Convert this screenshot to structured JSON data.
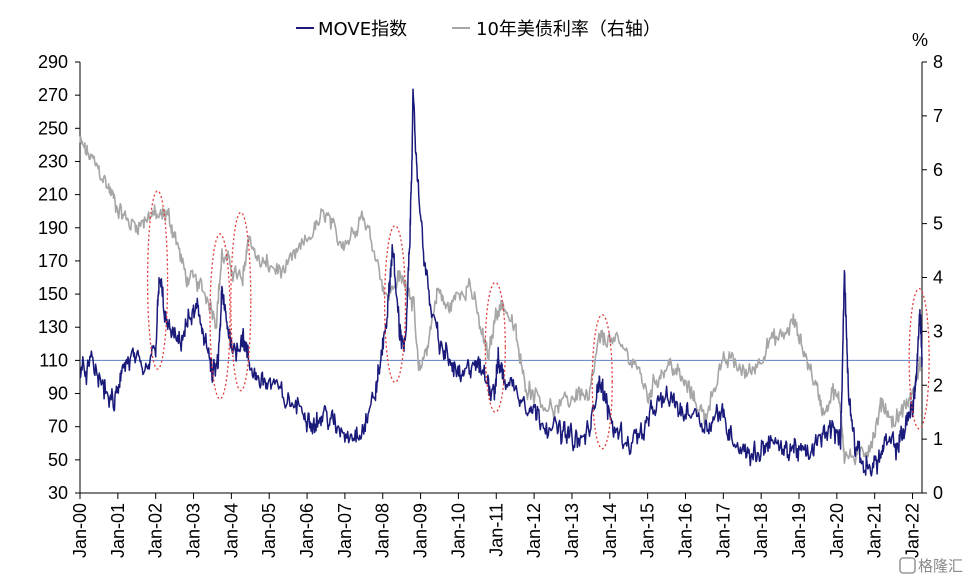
{
  "chart_data": {
    "type": "line",
    "legend": {
      "placement": "top-center",
      "items": [
        {
          "label": "MOVE指数",
          "color": "#1a1a7a"
        },
        {
          "label": "10年美债利率（右轴）",
          "color": "#a6a6a6"
        }
      ]
    },
    "left_axis": {
      "min": 30,
      "max": 290,
      "ticks": [
        "290",
        "270",
        "250",
        "230",
        "210",
        "190",
        "170",
        "150",
        "130",
        "110",
        "90",
        "70",
        "50",
        "30"
      ]
    },
    "right_axis": {
      "min": 0,
      "max": 8,
      "unit": "%",
      "ticks": [
        "8",
        "7",
        "6",
        "5",
        "4",
        "3",
        "2",
        "1",
        "0"
      ]
    },
    "x_axis": {
      "start": 2000.0,
      "end": 2022.25,
      "ticks": [
        "Jan-00",
        "Jan-01",
        "Jan-02",
        "Jan-03",
        "Jan-04",
        "Jan-05",
        "Jan-06",
        "Jan-07",
        "Jan-08",
        "Jan-09",
        "Jan-10",
        "Jan-11",
        "Jan-12",
        "Jan-13",
        "Jan-14",
        "Jan-15",
        "Jan-16",
        "Jan-17",
        "Jan-18",
        "Jan-19",
        "Jan-20",
        "Jan-21",
        "Jan-22"
      ]
    },
    "reference_line": {
      "axis": "left",
      "value": 110,
      "color": "#5b7fc4"
    },
    "grid": false,
    "series": [
      {
        "name": "MOVE指数",
        "axis": "left",
        "color": "#1a1a7a",
        "points": [
          [
            2000.0,
            100
          ],
          [
            2000.3,
            108
          ],
          [
            2000.6,
            95
          ],
          [
            2000.9,
            82
          ],
          [
            2001.1,
            105
          ],
          [
            2001.4,
            112
          ],
          [
            2001.7,
            100
          ],
          [
            2002.0,
            118
          ],
          [
            2002.1,
            160
          ],
          [
            2002.3,
            130
          ],
          [
            2002.6,
            120
          ],
          [
            2002.9,
            135
          ],
          [
            2003.1,
            140
          ],
          [
            2003.3,
            125
          ],
          [
            2003.5,
            100
          ],
          [
            2003.65,
            108
          ],
          [
            2003.75,
            150
          ],
          [
            2003.9,
            130
          ],
          [
            2004.1,
            115
          ],
          [
            2004.3,
            125
          ],
          [
            2004.5,
            105
          ],
          [
            2004.8,
            98
          ],
          [
            2005.1,
            95
          ],
          [
            2005.5,
            85
          ],
          [
            2005.9,
            80
          ],
          [
            2006.2,
            72
          ],
          [
            2006.5,
            78
          ],
          [
            2006.8,
            68
          ],
          [
            2007.2,
            65
          ],
          [
            2007.5,
            70
          ],
          [
            2007.8,
            90
          ],
          [
            2007.95,
            110
          ],
          [
            2008.15,
            145
          ],
          [
            2008.25,
            178
          ],
          [
            2008.45,
            128
          ],
          [
            2008.6,
            118
          ],
          [
            2008.72,
            185
          ],
          [
            2008.8,
            265
          ],
          [
            2008.95,
            210
          ],
          [
            2009.2,
            150
          ],
          [
            2009.5,
            120
          ],
          [
            2009.8,
            108
          ],
          [
            2010.1,
            98
          ],
          [
            2010.4,
            110
          ],
          [
            2010.7,
            100
          ],
          [
            2010.95,
            92
          ],
          [
            2011.05,
            110
          ],
          [
            2011.2,
            100
          ],
          [
            2011.6,
            90
          ],
          [
            2011.9,
            82
          ],
          [
            2012.2,
            75
          ],
          [
            2012.6,
            68
          ],
          [
            2012.9,
            65
          ],
          [
            2013.2,
            60
          ],
          [
            2013.5,
            70
          ],
          [
            2013.7,
            100
          ],
          [
            2013.85,
            88
          ],
          [
            2014.1,
            70
          ],
          [
            2014.5,
            60
          ],
          [
            2014.9,
            68
          ],
          [
            2015.2,
            82
          ],
          [
            2015.6,
            88
          ],
          [
            2015.9,
            78
          ],
          [
            2016.2,
            80
          ],
          [
            2016.6,
            70
          ],
          [
            2016.9,
            80
          ],
          [
            2017.2,
            65
          ],
          [
            2017.6,
            55
          ],
          [
            2017.9,
            53
          ],
          [
            2018.2,
            62
          ],
          [
            2018.6,
            55
          ],
          [
            2018.9,
            58
          ],
          [
            2019.2,
            52
          ],
          [
            2019.5,
            60
          ],
          [
            2019.8,
            70
          ],
          [
            2020.1,
            62
          ],
          [
            2020.2,
            163
          ],
          [
            2020.3,
            95
          ],
          [
            2020.5,
            55
          ],
          [
            2020.8,
            45
          ],
          [
            2021.1,
            50
          ],
          [
            2021.3,
            60
          ],
          [
            2021.6,
            58
          ],
          [
            2021.8,
            70
          ],
          [
            2022.0,
            82
          ],
          [
            2022.1,
            100
          ],
          [
            2022.2,
            140
          ],
          [
            2022.25,
            112
          ]
        ]
      },
      {
        "name": "10年美债利率（右轴）",
        "axis": "right",
        "color": "#a6a6a6",
        "points": [
          [
            2000.0,
            6.5
          ],
          [
            2000.2,
            6.3
          ],
          [
            2000.5,
            6.0
          ],
          [
            2000.8,
            5.6
          ],
          [
            2001.0,
            5.3
          ],
          [
            2001.3,
            5.0
          ],
          [
            2001.6,
            5.0
          ],
          [
            2001.9,
            5.2
          ],
          [
            2002.1,
            5.1
          ],
          [
            2002.3,
            5.2
          ],
          [
            2002.5,
            4.8
          ],
          [
            2002.8,
            4.0
          ],
          [
            2003.1,
            3.9
          ],
          [
            2003.4,
            3.6
          ],
          [
            2003.6,
            3.2
          ],
          [
            2003.75,
            4.4
          ],
          [
            2004.0,
            4.2
          ],
          [
            2004.3,
            3.9
          ],
          [
            2004.45,
            4.8
          ],
          [
            2004.7,
            4.3
          ],
          [
            2005.0,
            4.2
          ],
          [
            2005.4,
            4.1
          ],
          [
            2005.8,
            4.5
          ],
          [
            2006.2,
            4.9
          ],
          [
            2006.5,
            5.2
          ],
          [
            2006.8,
            4.7
          ],
          [
            2007.1,
            4.7
          ],
          [
            2007.45,
            5.2
          ],
          [
            2007.8,
            4.5
          ],
          [
            2008.1,
            3.6
          ],
          [
            2008.4,
            4.0
          ],
          [
            2008.6,
            3.9
          ],
          [
            2008.8,
            3.6
          ],
          [
            2008.95,
            2.2
          ],
          [
            2009.2,
            2.8
          ],
          [
            2009.45,
            3.8
          ],
          [
            2009.7,
            3.4
          ],
          [
            2010.0,
            3.7
          ],
          [
            2010.3,
            3.9
          ],
          [
            2010.6,
            3.0
          ],
          [
            2010.8,
            2.5
          ],
          [
            2011.0,
            3.4
          ],
          [
            2011.2,
            3.5
          ],
          [
            2011.5,
            3.0
          ],
          [
            2011.75,
            2.0
          ],
          [
            2012.0,
            1.9
          ],
          [
            2012.5,
            1.5
          ],
          [
            2012.9,
            1.7
          ],
          [
            2013.2,
            1.9
          ],
          [
            2013.45,
            1.7
          ],
          [
            2013.7,
            2.8
          ],
          [
            2013.9,
            2.9
          ],
          [
            2014.3,
            2.7
          ],
          [
            2014.7,
            2.4
          ],
          [
            2015.0,
            1.8
          ],
          [
            2015.3,
            2.2
          ],
          [
            2015.6,
            2.4
          ],
          [
            2015.9,
            2.1
          ],
          [
            2016.2,
            1.8
          ],
          [
            2016.5,
            1.4
          ],
          [
            2016.9,
            2.3
          ],
          [
            2017.2,
            2.5
          ],
          [
            2017.6,
            2.2
          ],
          [
            2017.9,
            2.4
          ],
          [
            2018.2,
            2.8
          ],
          [
            2018.6,
            2.9
          ],
          [
            2018.85,
            3.2
          ],
          [
            2019.1,
            2.7
          ],
          [
            2019.4,
            2.1
          ],
          [
            2019.65,
            1.5
          ],
          [
            2019.9,
            1.9
          ],
          [
            2020.1,
            1.6
          ],
          [
            2020.2,
            0.7
          ],
          [
            2020.5,
            0.65
          ],
          [
            2020.8,
            0.8
          ],
          [
            2021.0,
            1.1
          ],
          [
            2021.2,
            1.7
          ],
          [
            2021.5,
            1.3
          ],
          [
            2021.8,
            1.6
          ],
          [
            2022.0,
            1.8
          ],
          [
            2022.15,
            2.3
          ],
          [
            2022.25,
            2.5
          ]
        ]
      }
    ],
    "annotations": {
      "style": "red dotted ellipse",
      "color": "#e03a3a",
      "highlight_periods": [
        {
          "start": 2001.85,
          "end": 2002.25
        },
        {
          "start": 2003.45,
          "end": 2003.95
        },
        {
          "start": 2004.0,
          "end": 2004.5
        },
        {
          "start": 2008.05,
          "end": 2008.6
        },
        {
          "start": 2010.75,
          "end": 2011.2
        },
        {
          "start": 2013.55,
          "end": 2014.05
        },
        {
          "start": 2022.0,
          "end": 2022.35
        }
      ]
    }
  },
  "watermark": {
    "text": "格隆汇"
  }
}
